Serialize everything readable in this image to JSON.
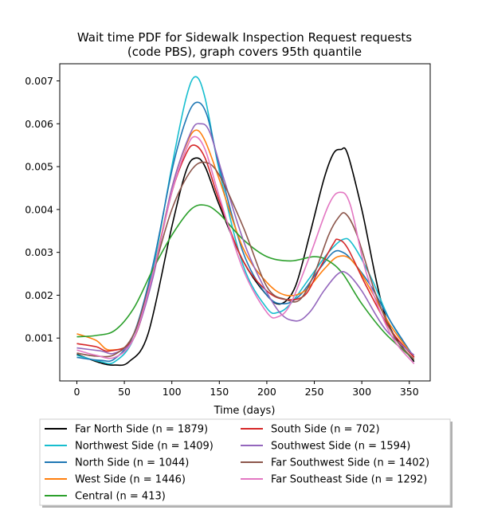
{
  "chart_data": {
    "type": "line",
    "title_lines": [
      "Wait time PDF for Sidewalk Inspection Request  requests",
      "(code PBS), graph covers 95th quantile"
    ],
    "xlabel": "Time (days)",
    "ylabel": "",
    "xlim": [
      -18,
      372
    ],
    "ylim": [
      -0.0,
      0.0074
    ],
    "xticks": [
      0,
      50,
      100,
      150,
      200,
      250,
      300,
      350
    ],
    "yticks": [
      0.001,
      0.002,
      0.003,
      0.004,
      0.005,
      0.006,
      0.007
    ],
    "ytick_labels": [
      "0.001",
      "0.002",
      "0.003",
      "0.004",
      "0.005",
      "0.006",
      "0.007"
    ],
    "grid": false,
    "legend_placement": "below plot, two columns",
    "series": [
      {
        "name": "Far North Side (n = 1879)",
        "color": "#000000",
        "x": [
          0,
          25,
          40,
          55,
          75,
          100,
          115,
          125,
          135,
          150,
          175,
          200,
          215,
          230,
          245,
          260,
          270,
          278,
          285,
          300,
          325,
          355
        ],
        "y": [
          0.00062,
          0.00042,
          0.00037,
          0.00045,
          0.0011,
          0.0036,
          0.0049,
          0.0052,
          0.005,
          0.0041,
          0.0028,
          0.002,
          0.0018,
          0.0022,
          0.0034,
          0.0047,
          0.0053,
          0.0054,
          0.0053,
          0.004,
          0.0015,
          0.00045
        ]
      },
      {
        "name": "Northwest Side (n = 1409)",
        "color": "#17becf",
        "x": [
          0,
          25,
          40,
          60,
          80,
          100,
          115,
          125,
          135,
          150,
          175,
          200,
          212,
          225,
          245,
          265,
          280,
          290,
          310,
          330,
          355
        ],
        "y": [
          0.0006,
          0.00045,
          0.00045,
          0.001,
          0.0026,
          0.005,
          0.0066,
          0.0071,
          0.0066,
          0.0049,
          0.0027,
          0.0017,
          0.0016,
          0.0018,
          0.0024,
          0.003,
          0.0033,
          0.0032,
          0.0024,
          0.0014,
          0.00055
        ]
      },
      {
        "name": "North Side (n = 1044)",
        "color": "#1f77b4",
        "x": [
          0,
          25,
          40,
          60,
          80,
          100,
          115,
          126,
          137,
          150,
          175,
          200,
          218,
          235,
          255,
          270,
          280,
          290,
          310,
          330,
          355
        ],
        "y": [
          0.00055,
          0.00048,
          0.00052,
          0.0011,
          0.0027,
          0.0049,
          0.0061,
          0.0065,
          0.0062,
          0.005,
          0.003,
          0.002,
          0.0018,
          0.002,
          0.0026,
          0.003,
          0.003,
          0.0028,
          0.0022,
          0.0014,
          0.00055
        ]
      },
      {
        "name": "West Side (n = 1446)",
        "color": "#ff7f0e",
        "x": [
          0,
          20,
          35,
          60,
          80,
          100,
          115,
          125,
          135,
          150,
          175,
          200,
          220,
          240,
          260,
          275,
          290,
          310,
          330,
          355
        ],
        "y": [
          0.0011,
          0.00095,
          0.00072,
          0.001,
          0.0025,
          0.0045,
          0.0055,
          0.00585,
          0.0056,
          0.0047,
          0.0031,
          0.0023,
          0.002,
          0.0021,
          0.0026,
          0.0029,
          0.0028,
          0.0021,
          0.0013,
          0.00055
        ]
      },
      {
        "name": "Central (n = 413)",
        "color": "#2ca02c",
        "x": [
          0,
          20,
          40,
          60,
          80,
          100,
          120,
          135,
          150,
          175,
          200,
          225,
          250,
          265,
          280,
          300,
          325,
          355
        ],
        "y": [
          0.00103,
          0.00106,
          0.00118,
          0.0017,
          0.0026,
          0.0034,
          0.004,
          0.0041,
          0.0039,
          0.0033,
          0.0029,
          0.0028,
          0.0029,
          0.0028,
          0.0025,
          0.0018,
          0.0011,
          0.0005
        ]
      },
      {
        "name": "South Side (n = 702)",
        "color": "#d62728",
        "x": [
          0,
          20,
          35,
          60,
          80,
          100,
          115,
          124,
          135,
          150,
          175,
          200,
          220,
          240,
          255,
          270,
          275,
          285,
          305,
          330,
          355
        ],
        "y": [
          0.00087,
          0.0008,
          0.0007,
          0.001,
          0.0025,
          0.0044,
          0.0053,
          0.0055,
          0.0052,
          0.0042,
          0.0028,
          0.0021,
          0.0019,
          0.002,
          0.0026,
          0.0032,
          0.0033,
          0.0031,
          0.0022,
          0.0012,
          0.00055
        ]
      },
      {
        "name": "Southwest Side (n = 1594)",
        "color": "#9467bd",
        "x": [
          0,
          25,
          40,
          60,
          80,
          100,
          120,
          130,
          140,
          155,
          180,
          210,
          230,
          245,
          260,
          275,
          285,
          300,
          325,
          355
        ],
        "y": [
          0.00077,
          0.0007,
          0.00065,
          0.001,
          0.0024,
          0.0045,
          0.0058,
          0.006,
          0.0058,
          0.0047,
          0.003,
          0.0017,
          0.0014,
          0.0016,
          0.0021,
          0.0025,
          0.0025,
          0.0021,
          0.0012,
          0.0006
        ]
      },
      {
        "name": "Far Southwest Side (n = 1402)",
        "color": "#8c564b",
        "x": [
          0,
          20,
          40,
          60,
          80,
          100,
          120,
          135,
          150,
          175,
          200,
          220,
          235,
          250,
          265,
          275,
          283,
          295,
          315,
          335,
          355
        ],
        "y": [
          0.00065,
          0.00058,
          0.00062,
          0.0011,
          0.0025,
          0.004,
          0.0049,
          0.0051,
          0.0048,
          0.0036,
          0.0022,
          0.0019,
          0.0019,
          0.0025,
          0.0034,
          0.0038,
          0.0039,
          0.0034,
          0.002,
          0.001,
          0.0005
        ]
      },
      {
        "name": "Far Southeast Side (n = 1292)",
        "color": "#e377c2",
        "x": [
          0,
          20,
          40,
          60,
          80,
          100,
          115,
          124,
          135,
          150,
          175,
          200,
          212,
          225,
          245,
          265,
          277,
          288,
          305,
          330,
          355
        ],
        "y": [
          0.00072,
          0.0006,
          0.00055,
          0.001,
          0.0025,
          0.0044,
          0.0054,
          0.0057,
          0.0054,
          0.0043,
          0.0026,
          0.0016,
          0.0015,
          0.0018,
          0.0029,
          0.0041,
          0.0044,
          0.0041,
          0.0025,
          0.0011,
          0.0004
        ]
      }
    ]
  }
}
